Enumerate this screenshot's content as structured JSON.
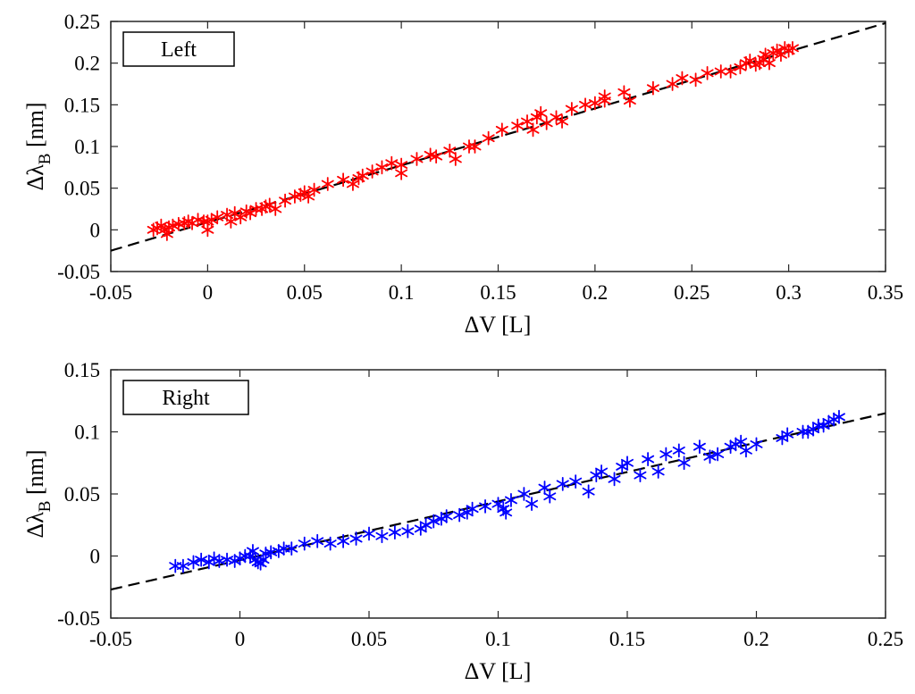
{
  "chart_data": [
    {
      "type": "scatter",
      "legend": "Left",
      "legend_position": "top-left",
      "xlabel": "ΔV [L]",
      "ylabel": "Δλ_B [nm]",
      "xlim": [
        -0.05,
        0.35
      ],
      "ylim": [
        -0.05,
        0.25
      ],
      "xticks": [
        "-0.05",
        "0",
        "0.05",
        "0.1",
        "0.15",
        "0.2",
        "0.25",
        "0.3",
        "0.35"
      ],
      "yticks": [
        "-0.05",
        "0",
        "0.05",
        "0.1",
        "0.15",
        "0.2",
        "0.25"
      ],
      "grid": false,
      "marker_color": "#ff0000",
      "fit_line": {
        "x": [
          -0.05,
          0.35
        ],
        "y": [
          -0.025,
          0.248
        ]
      },
      "x": [
        -0.028,
        -0.026,
        -0.024,
        -0.022,
        -0.021,
        -0.02,
        -0.018,
        -0.015,
        -0.012,
        -0.01,
        -0.008,
        -0.005,
        -0.002,
        0.0,
        0.0,
        0.002,
        0.005,
        0.01,
        0.012,
        0.014,
        0.017,
        0.02,
        0.022,
        0.025,
        0.028,
        0.03,
        0.032,
        0.035,
        0.04,
        0.045,
        0.048,
        0.05,
        0.052,
        0.055,
        0.062,
        0.07,
        0.075,
        0.078,
        0.08,
        0.085,
        0.09,
        0.095,
        0.1,
        0.1,
        0.108,
        0.115,
        0.118,
        0.125,
        0.128,
        0.135,
        0.138,
        0.145,
        0.152,
        0.16,
        0.165,
        0.168,
        0.17,
        0.172,
        0.175,
        0.18,
        0.183,
        0.188,
        0.195,
        0.2,
        0.205,
        0.205,
        0.215,
        0.218,
        0.23,
        0.24,
        0.245,
        0.252,
        0.258,
        0.265,
        0.27,
        0.275,
        0.278,
        0.28,
        0.283,
        0.285,
        0.287,
        0.288,
        0.29,
        0.292,
        0.294,
        0.296,
        0.298,
        0.3,
        0.302
      ],
      "y": [
        0.0,
        0.002,
        0.005,
        0.0,
        -0.005,
        0.003,
        0.005,
        0.007,
        0.008,
        0.01,
        0.008,
        0.012,
        0.01,
        0.0,
        0.01,
        0.012,
        0.015,
        0.018,
        0.01,
        0.02,
        0.015,
        0.022,
        0.02,
        0.025,
        0.025,
        0.028,
        0.03,
        0.025,
        0.035,
        0.04,
        0.042,
        0.045,
        0.04,
        0.048,
        0.055,
        0.06,
        0.055,
        0.062,
        0.065,
        0.07,
        0.075,
        0.08,
        0.078,
        0.068,
        0.085,
        0.09,
        0.088,
        0.095,
        0.085,
        0.1,
        0.1,
        0.11,
        0.12,
        0.125,
        0.13,
        0.12,
        0.135,
        0.14,
        0.128,
        0.135,
        0.13,
        0.145,
        0.15,
        0.152,
        0.155,
        0.16,
        0.165,
        0.155,
        0.17,
        0.175,
        0.182,
        0.18,
        0.188,
        0.19,
        0.19,
        0.195,
        0.2,
        0.203,
        0.198,
        0.2,
        0.205,
        0.21,
        0.2,
        0.212,
        0.215,
        0.21,
        0.218,
        0.215,
        0.218
      ]
    },
    {
      "type": "scatter",
      "legend": "Right",
      "legend_position": "top-left",
      "xlabel": "ΔV [L]",
      "ylabel": "Δλ_B [nm]",
      "xlim": [
        -0.05,
        0.25
      ],
      "ylim": [
        -0.05,
        0.15
      ],
      "xticks": [
        "-0.05",
        "0",
        "0.05",
        "0.1",
        "0.15",
        "0.2",
        "0.25"
      ],
      "yticks": [
        "-0.05",
        "0",
        "0.05",
        "0.1",
        "0.15"
      ],
      "grid": false,
      "marker_color": "#0000ff",
      "fit_line": {
        "x": [
          -0.05,
          0.25
        ],
        "y": [
          -0.027,
          0.115
        ]
      },
      "x": [
        -0.025,
        -0.022,
        -0.018,
        -0.015,
        -0.012,
        -0.01,
        -0.008,
        -0.005,
        -0.002,
        0.0,
        0.002,
        0.004,
        0.005,
        0.006,
        0.007,
        0.008,
        0.009,
        0.01,
        0.012,
        0.015,
        0.017,
        0.02,
        0.025,
        0.03,
        0.035,
        0.04,
        0.045,
        0.05,
        0.055,
        0.06,
        0.065,
        0.07,
        0.072,
        0.075,
        0.078,
        0.08,
        0.085,
        0.088,
        0.09,
        0.095,
        0.1,
        0.102,
        0.103,
        0.105,
        0.11,
        0.113,
        0.118,
        0.12,
        0.125,
        0.13,
        0.135,
        0.138,
        0.14,
        0.145,
        0.148,
        0.15,
        0.155,
        0.158,
        0.162,
        0.165,
        0.17,
        0.172,
        0.178,
        0.182,
        0.185,
        0.19,
        0.192,
        0.194,
        0.196,
        0.2,
        0.21,
        0.212,
        0.218,
        0.22,
        0.222,
        0.224,
        0.226,
        0.228,
        0.23,
        0.232
      ],
      "y": [
        -0.008,
        -0.008,
        -0.005,
        -0.003,
        -0.005,
        -0.002,
        -0.004,
        -0.003,
        -0.004,
        -0.002,
        0.0,
        0.0,
        0.004,
        -0.003,
        -0.005,
        -0.006,
        -0.003,
        0.002,
        0.003,
        0.004,
        0.006,
        0.006,
        0.01,
        0.012,
        0.01,
        0.012,
        0.014,
        0.018,
        0.016,
        0.019,
        0.02,
        0.022,
        0.025,
        0.028,
        0.03,
        0.032,
        0.033,
        0.035,
        0.038,
        0.04,
        0.042,
        0.038,
        0.035,
        0.045,
        0.05,
        0.042,
        0.055,
        0.048,
        0.058,
        0.06,
        0.052,
        0.065,
        0.068,
        0.062,
        0.072,
        0.075,
        0.065,
        0.078,
        0.068,
        0.082,
        0.085,
        0.075,
        0.088,
        0.08,
        0.082,
        0.088,
        0.09,
        0.092,
        0.085,
        0.09,
        0.095,
        0.098,
        0.1,
        0.1,
        0.102,
        0.105,
        0.105,
        0.108,
        0.11,
        0.112
      ]
    }
  ]
}
